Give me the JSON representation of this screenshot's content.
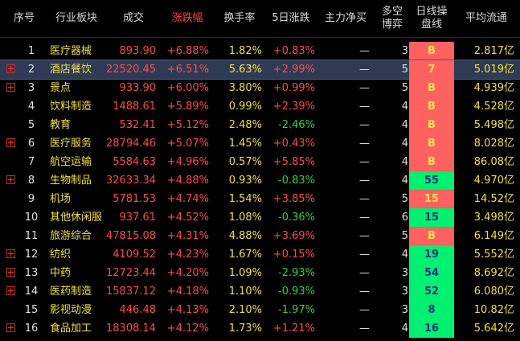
{
  "headers": [
    "序号",
    "行业板块",
    "成交",
    "涨跌幅",
    "换手率",
    "5日涨跌",
    "主力净买",
    "多空\n博弈",
    "日线操\n盘线",
    "平均流通"
  ],
  "rows": [
    {
      "idx": "1",
      "name": "医疗器械",
      "vol": "893.90",
      "chg": "+6.88%",
      "turn": "1.82%",
      "five": "+0.83%",
      "five_dir": "up",
      "main": "—",
      "ls": "3",
      "day": "B",
      "day_color": "red",
      "avg": "2.817亿",
      "plus": false,
      "selected": false
    },
    {
      "idx": "2",
      "name": "酒店餐饮",
      "vol": "22520.45",
      "chg": "+6.51%",
      "turn": "5.63%",
      "five": "+2.99%",
      "five_dir": "up",
      "main": "—",
      "ls": "5",
      "day": "7",
      "day_color": "red",
      "avg": "5.019亿",
      "plus": true,
      "selected": true
    },
    {
      "idx": "3",
      "name": "景点",
      "vol": "933.90",
      "chg": "+6.00%",
      "turn": "3.80%",
      "five": "+0.99%",
      "five_dir": "up",
      "main": "—",
      "ls": "5",
      "day": "B",
      "day_color": "red",
      "avg": "4.939亿",
      "plus": true,
      "selected": false
    },
    {
      "idx": "4",
      "name": "饮料制造",
      "vol": "1488.61",
      "chg": "+5.89%",
      "turn": "0.99%",
      "five": "+2.39%",
      "five_dir": "up",
      "main": "—",
      "ls": "4",
      "day": "B",
      "day_color": "red",
      "avg": "4.528亿",
      "plus": false,
      "selected": false
    },
    {
      "idx": "5",
      "name": "教育",
      "vol": "532.41",
      "chg": "+5.12%",
      "turn": "2.48%",
      "five": "-2.46%",
      "five_dir": "down",
      "main": "—",
      "ls": "4",
      "day": "B",
      "day_color": "red",
      "avg": "5.498亿",
      "plus": false,
      "selected": false
    },
    {
      "idx": "6",
      "name": "医疗服务",
      "vol": "28794.46",
      "chg": "+5.07%",
      "turn": "1.45%",
      "five": "+0.43%",
      "five_dir": "up",
      "main": "—",
      "ls": "4",
      "day": "B",
      "day_color": "red",
      "avg": "8.028亿",
      "plus": true,
      "selected": false
    },
    {
      "idx": "7",
      "name": "航空运输",
      "vol": "5584.63",
      "chg": "+4.96%",
      "turn": "0.57%",
      "five": "+5.85%",
      "five_dir": "up",
      "main": "—",
      "ls": "4",
      "day": "B",
      "day_color": "red",
      "avg": "86.08亿",
      "plus": false,
      "selected": false
    },
    {
      "idx": "8",
      "name": "生物制品",
      "vol": "32633.34",
      "chg": "+4.88%",
      "turn": "0.93%",
      "five": "-0.83%",
      "five_dir": "down",
      "main": "—",
      "ls": "4",
      "day": "55",
      "day_color": "green",
      "avg": "4.970亿",
      "plus": true,
      "selected": false
    },
    {
      "idx": "9",
      "name": "机场",
      "vol": "5781.53",
      "chg": "+4.74%",
      "turn": "1.54%",
      "five": "+3.85%",
      "five_dir": "up",
      "main": "—",
      "ls": "5",
      "day": "15",
      "day_color": "red",
      "avg": "14.52亿",
      "plus": false,
      "selected": false
    },
    {
      "idx": "10",
      "name": "其他休闲服",
      "vol": "937.61",
      "chg": "+4.52%",
      "turn": "1.08%",
      "five": "-0.36%",
      "five_dir": "down",
      "main": "—",
      "ls": "6",
      "day": "15",
      "day_color": "green",
      "avg": "3.498亿",
      "plus": false,
      "selected": false
    },
    {
      "idx": "11",
      "name": "旅游综合",
      "vol": "47815.08",
      "chg": "+4.31%",
      "turn": "4.88%",
      "five": "+3.69%",
      "five_dir": "up",
      "main": "—",
      "ls": "5",
      "day": "B",
      "day_color": "red",
      "avg": "6.149亿",
      "plus": false,
      "selected": false
    },
    {
      "idx": "12",
      "name": "纺织",
      "vol": "4109.52",
      "chg": "+4.23%",
      "turn": "1.67%",
      "five": "+0.15%",
      "five_dir": "up",
      "main": "—",
      "ls": "4",
      "day": "19",
      "day_color": "green",
      "avg": "5.552亿",
      "plus": true,
      "selected": false
    },
    {
      "idx": "13",
      "name": "中药",
      "vol": "12723.44",
      "chg": "+4.20%",
      "turn": "1.09%",
      "five": "-2.93%",
      "five_dir": "down",
      "main": "—",
      "ls": "3",
      "day": "54",
      "day_color": "green",
      "avg": "8.692亿",
      "plus": true,
      "selected": false
    },
    {
      "idx": "14",
      "name": "医药制造",
      "vol": "15837.12",
      "chg": "+4.18%",
      "turn": "1.10%",
      "five": "-0.93%",
      "five_dir": "down",
      "main": "—",
      "ls": "3",
      "day": "52",
      "day_color": "green",
      "avg": "6.080亿",
      "plus": true,
      "selected": false
    },
    {
      "idx": "15",
      "name": "影视动漫",
      "vol": "446.48",
      "chg": "+4.13%",
      "turn": "2.10%",
      "five": "-1.97%",
      "five_dir": "down",
      "main": "—",
      "ls": "3",
      "day": "8",
      "day_color": "green",
      "avg": "10.82亿",
      "plus": false,
      "selected": false
    },
    {
      "idx": "16",
      "name": "食品加工",
      "vol": "18308.14",
      "chg": "+4.12%",
      "turn": "1.73%",
      "five": "+1.21%",
      "five_dir": "up",
      "main": "—",
      "ls": "4",
      "day": "16",
      "day_color": "green",
      "avg": "5.642亿",
      "plus": true,
      "selected": false
    }
  ],
  "colors": {
    "up": "#ff4a4a",
    "down": "#30d040",
    "name": "#f0e040",
    "day_red": "#ff6060",
    "day_green": "#00f070",
    "active_header": "#ff4040"
  }
}
